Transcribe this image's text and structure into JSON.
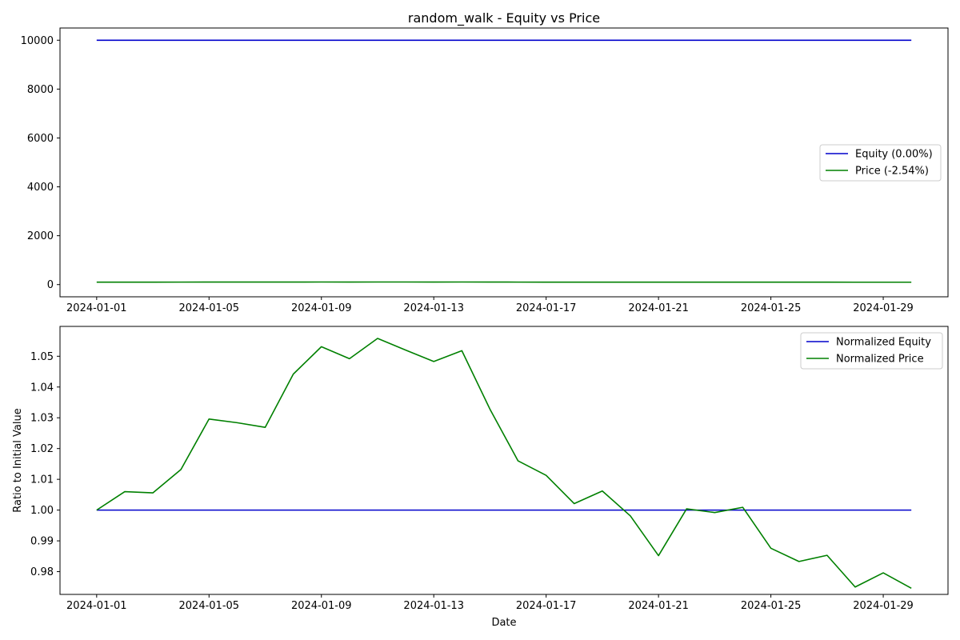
{
  "figure": {
    "title": "random_walk - Equity vs Price"
  },
  "chart_data": [
    {
      "type": "line",
      "title": "random_walk - Equity vs Price",
      "xlabel": "",
      "ylabel": "",
      "ylim": [
        -500,
        10500
      ],
      "yticks": [
        0,
        2000,
        4000,
        6000,
        8000,
        10000
      ],
      "xticks": [
        "2024-01-01",
        "2024-01-05",
        "2024-01-09",
        "2024-01-13",
        "2024-01-17",
        "2024-01-21",
        "2024-01-25",
        "2024-01-29"
      ],
      "grid": false,
      "legend_position": "center-right",
      "x": [
        "2024-01-01",
        "2024-01-02",
        "2024-01-03",
        "2024-01-04",
        "2024-01-05",
        "2024-01-06",
        "2024-01-07",
        "2024-01-08",
        "2024-01-09",
        "2024-01-10",
        "2024-01-11",
        "2024-01-12",
        "2024-01-13",
        "2024-01-14",
        "2024-01-15",
        "2024-01-16",
        "2024-01-17",
        "2024-01-18",
        "2024-01-19",
        "2024-01-20",
        "2024-01-21",
        "2024-01-22",
        "2024-01-23",
        "2024-01-24",
        "2024-01-25",
        "2024-01-26",
        "2024-01-27",
        "2024-01-28",
        "2024-01-29",
        "2024-01-30"
      ],
      "series": [
        {
          "name": "Equity (0.00%)",
          "color": "#0000cc",
          "values": [
            10000,
            10000,
            10000,
            10000,
            10000,
            10000,
            10000,
            10000,
            10000,
            10000,
            10000,
            10000,
            10000,
            10000,
            10000,
            10000,
            10000,
            10000,
            10000,
            10000,
            10000,
            10000,
            10000,
            10000,
            10000,
            10000,
            10000,
            10000,
            10000,
            10000
          ]
        },
        {
          "name": "Price (-2.54%)",
          "color": "#008000",
          "values": [
            100.0,
            100.6,
            100.56,
            101.32,
            102.96,
            102.84,
            102.69,
            104.42,
            105.31,
            104.92,
            105.58,
            105.2,
            104.83,
            105.18,
            103.28,
            101.6,
            101.13,
            100.21,
            100.62,
            99.81,
            98.52,
            100.04,
            99.92,
            100.09,
            98.76,
            98.33,
            98.53,
            97.5,
            97.96,
            97.46
          ]
        }
      ]
    },
    {
      "type": "line",
      "title": "",
      "xlabel": "Date",
      "ylabel": "Ratio to Initial Value",
      "ylim": [
        0.9726,
        1.0597
      ],
      "yticks": [
        0.98,
        0.99,
        1.0,
        1.01,
        1.02,
        1.03,
        1.04,
        1.05
      ],
      "ytick_labels": [
        "0.98",
        "0.99",
        "1.00",
        "1.01",
        "1.02",
        "1.03",
        "1.04",
        "1.05"
      ],
      "xticks": [
        "2024-01-01",
        "2024-01-05",
        "2024-01-09",
        "2024-01-13",
        "2024-01-17",
        "2024-01-21",
        "2024-01-25",
        "2024-01-29"
      ],
      "grid": false,
      "legend_position": "top-right",
      "x": [
        "2024-01-01",
        "2024-01-02",
        "2024-01-03",
        "2024-01-04",
        "2024-01-05",
        "2024-01-06",
        "2024-01-07",
        "2024-01-08",
        "2024-01-09",
        "2024-01-10",
        "2024-01-11",
        "2024-01-12",
        "2024-01-13",
        "2024-01-14",
        "2024-01-15",
        "2024-01-16",
        "2024-01-17",
        "2024-01-18",
        "2024-01-19",
        "2024-01-20",
        "2024-01-21",
        "2024-01-22",
        "2024-01-23",
        "2024-01-24",
        "2024-01-25",
        "2024-01-26",
        "2024-01-27",
        "2024-01-28",
        "2024-01-29",
        "2024-01-30"
      ],
      "series": [
        {
          "name": "Normalized Equity",
          "color": "#0000cc",
          "values": [
            1.0,
            1.0,
            1.0,
            1.0,
            1.0,
            1.0,
            1.0,
            1.0,
            1.0,
            1.0,
            1.0,
            1.0,
            1.0,
            1.0,
            1.0,
            1.0,
            1.0,
            1.0,
            1.0,
            1.0,
            1.0,
            1.0,
            1.0,
            1.0,
            1.0,
            1.0,
            1.0,
            1.0,
            1.0,
            1.0
          ]
        },
        {
          "name": "Normalized Price",
          "color": "#008000",
          "values": [
            1.0,
            1.006,
            1.0056,
            1.0132,
            1.0296,
            1.0284,
            1.0269,
            1.0442,
            1.0531,
            1.0492,
            1.0558,
            1.052,
            1.0483,
            1.0518,
            1.0328,
            1.016,
            1.0113,
            1.0021,
            1.0062,
            0.9981,
            0.9852,
            1.0004,
            0.9992,
            1.0009,
            0.9876,
            0.9833,
            0.9853,
            0.975,
            0.9796,
            0.9746
          ]
        }
      ]
    }
  ]
}
